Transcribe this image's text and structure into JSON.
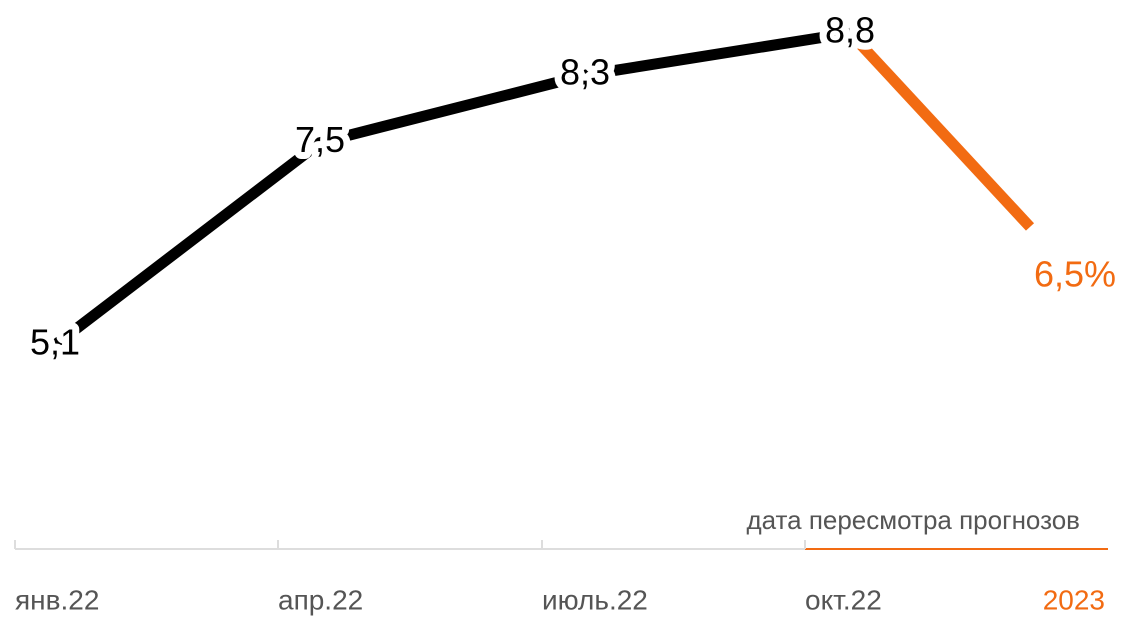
{
  "chart_data": {
    "type": "line",
    "categories": [
      "янв.22",
      "апр.22",
      "июль.22",
      "окт.22",
      "2023"
    ],
    "series": [
      {
        "color": "#000000",
        "values": [
          5.1,
          7.5,
          8.3,
          8.8,
          null
        ],
        "value_labels": [
          "5,1",
          "7,5",
          "8,3",
          "8,8",
          null
        ]
      },
      {
        "color": "#f26b12",
        "values": [
          null,
          null,
          null,
          8.8,
          6.5
        ],
        "value_labels": [
          null,
          null,
          null,
          null,
          "6,5%"
        ]
      }
    ],
    "annotation": "дата пересмотра прогнозов"
  }
}
